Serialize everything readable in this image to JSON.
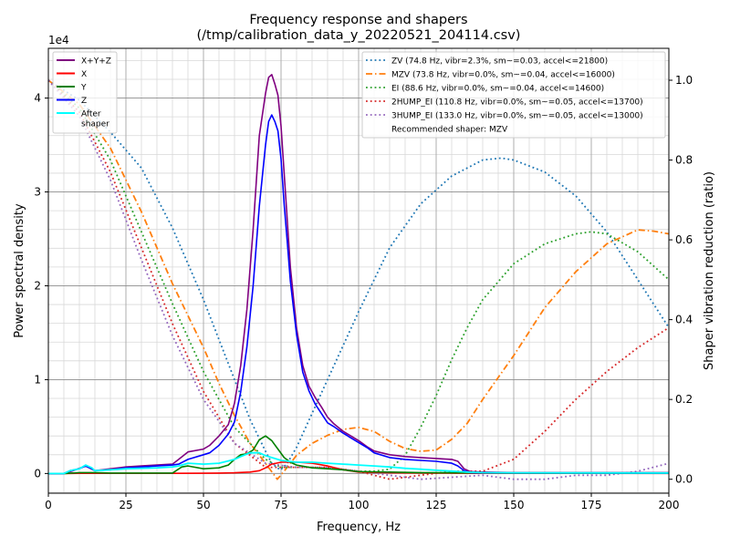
{
  "chart_data": {
    "type": "line",
    "title": "Frequency response and shapers",
    "subtitle": "(/tmp/calibration_data_y_20220521_204114.csv)",
    "xlabel": "Frequency, Hz",
    "ylabel": "Power spectral density",
    "y2label": "Shaper vibration reduction (ratio)",
    "y_offset_text": "1e4",
    "xlim": [
      0,
      200
    ],
    "ylim": [
      -2100,
      45300
    ],
    "y2lim": [
      -0.035,
      1.08
    ],
    "x_ticks": [
      0,
      25,
      50,
      75,
      100,
      125,
      150,
      175,
      200
    ],
    "y_ticks": [
      0,
      10000,
      20000,
      30000,
      40000
    ],
    "y_tick_labels": [
      "0",
      "1",
      "2",
      "3",
      "4"
    ],
    "y2_ticks": [
      0.0,
      0.2,
      0.4,
      0.6,
      0.8,
      1.0
    ],
    "y2_tick_labels": [
      "0.0",
      "0.2",
      "0.4",
      "0.6",
      "0.8",
      "1.0"
    ],
    "grid": true,
    "psd_legend_position": "top-left",
    "shaper_legend_position": "top-right",
    "psd_series": [
      {
        "name": "X+Y+Z",
        "color": "#800080",
        "width": 1.6,
        "x": [
          0,
          5,
          8,
          12,
          15,
          20,
          25,
          30,
          35,
          40,
          42,
          45,
          50,
          52,
          55,
          58,
          60,
          62,
          64,
          66,
          68,
          70,
          71,
          72,
          73,
          74,
          75,
          76,
          77,
          78,
          80,
          82,
          84,
          86,
          88,
          90,
          92,
          95,
          100,
          103,
          105,
          110,
          115,
          120,
          125,
          130,
          132,
          134,
          136,
          140,
          150,
          160,
          170,
          180,
          190,
          200
        ],
        "y": [
          0,
          0,
          300,
          800,
          300,
          500,
          700,
          800,
          900,
          1000,
          1500,
          2300,
          2600,
          3000,
          4000,
          5200,
          7500,
          11500,
          17500,
          26000,
          36000,
          40500,
          42200,
          42500,
          41500,
          40300,
          37000,
          32000,
          27000,
          22000,
          15500,
          11500,
          9300,
          8100,
          7100,
          6000,
          5300,
          4500,
          3500,
          2800,
          2400,
          2000,
          1800,
          1700,
          1600,
          1500,
          1300,
          500,
          200,
          150,
          100,
          100,
          100,
          100,
          100,
          100
        ]
      },
      {
        "name": "X",
        "color": "#ff0000",
        "width": 1.6,
        "x": [
          0,
          5,
          10,
          20,
          30,
          40,
          50,
          55,
          60,
          65,
          68,
          70,
          72,
          75,
          80,
          85,
          90,
          95,
          100,
          110,
          120,
          130,
          140,
          150,
          200
        ],
        "y": [
          0,
          0,
          20,
          20,
          20,
          20,
          30,
          50,
          80,
          150,
          300,
          600,
          1000,
          1200,
          1200,
          1100,
          800,
          400,
          150,
          80,
          60,
          40,
          30,
          20,
          10
        ]
      },
      {
        "name": "Y",
        "color": "#008000",
        "width": 1.6,
        "x": [
          0,
          5,
          10,
          15,
          20,
          30,
          40,
          43,
          45,
          50,
          55,
          58,
          60,
          62,
          64,
          66,
          68,
          70,
          72,
          74,
          76,
          78,
          80,
          85,
          90,
          95,
          100,
          110,
          120,
          130,
          140,
          150,
          200
        ],
        "y": [
          0,
          0,
          100,
          100,
          50,
          50,
          50,
          700,
          800,
          500,
          600,
          900,
          1500,
          2000,
          2100,
          2500,
          3600,
          4000,
          3500,
          2600,
          1700,
          1200,
          900,
          600,
          500,
          400,
          200,
          150,
          100,
          80,
          60,
          50,
          30
        ]
      },
      {
        "name": "Z",
        "color": "#0000ff",
        "width": 1.6,
        "x": [
          0,
          5,
          7,
          10,
          12,
          14,
          15,
          20,
          25,
          30,
          35,
          40,
          42,
          45,
          50,
          52,
          55,
          58,
          60,
          62,
          64,
          66,
          68,
          70,
          71,
          72,
          73,
          74,
          75,
          76,
          77,
          78,
          80,
          82,
          84,
          86,
          88,
          90,
          92,
          95,
          100,
          103,
          105,
          110,
          115,
          120,
          125,
          130,
          132,
          134,
          136,
          140,
          150,
          200
        ],
        "y": [
          0,
          0,
          300,
          500,
          800,
          500,
          300,
          400,
          600,
          700,
          800,
          900,
          1000,
          1500,
          2000,
          2200,
          3000,
          4200,
          5500,
          8700,
          13500,
          20000,
          28500,
          35000,
          37500,
          38200,
          37500,
          36500,
          33500,
          28700,
          24700,
          20500,
          14800,
          10800,
          8800,
          7400,
          6400,
          5400,
          5000,
          4300,
          3300,
          2700,
          2200,
          1700,
          1500,
          1400,
          1300,
          1100,
          800,
          300,
          100,
          80,
          60,
          50
        ]
      },
      {
        "name": "After\nshaper",
        "color": "#00ffff",
        "width": 1.8,
        "x": [
          0,
          5,
          7,
          10,
          12,
          14,
          15,
          20,
          25,
          30,
          35,
          40,
          42,
          45,
          50,
          55,
          60,
          62,
          65,
          68,
          70,
          72,
          75,
          80,
          85,
          90,
          95,
          100,
          105,
          110,
          115,
          120,
          125,
          130,
          135,
          140,
          150,
          200
        ],
        "y": [
          0,
          0,
          300,
          500,
          900,
          600,
          300,
          400,
          500,
          550,
          600,
          700,
          800,
          1100,
          1000,
          1100,
          1500,
          1800,
          2200,
          2200,
          1900,
          1700,
          1400,
          1200,
          1200,
          1100,
          1000,
          900,
          800,
          700,
          550,
          450,
          350,
          250,
          150,
          100,
          80,
          60
        ]
      }
    ],
    "shaper_series": [
      {
        "name": "ZV (74.8 Hz, vibr=2.3%, sm~=0.03, accel<=21800)",
        "color": "#1f77b4",
        "dash": "1.8,3",
        "x": [
          0,
          10,
          20,
          30,
          40,
          50,
          60,
          65,
          70,
          72,
          74.8,
          77,
          80,
          90,
          100,
          110,
          120,
          130,
          140,
          146,
          150,
          160,
          170,
          180,
          190,
          200
        ],
        "y": [
          1.0,
          0.95,
          0.87,
          0.78,
          0.63,
          0.45,
          0.25,
          0.15,
          0.07,
          0.04,
          0.023,
          0.04,
          0.08,
          0.25,
          0.42,
          0.58,
          0.69,
          0.76,
          0.8,
          0.805,
          0.8,
          0.77,
          0.71,
          0.62,
          0.5,
          0.38
        ]
      },
      {
        "name": "MZV (73.8 Hz, vibr=0.0%, sm~=0.04, accel<=16000)",
        "color": "#ff7f0e",
        "dash": "7,3,1.5,3",
        "x": [
          0,
          10,
          20,
          30,
          40,
          50,
          55,
          60,
          65,
          70,
          73.8,
          76,
          80,
          85,
          90,
          95,
          100,
          105,
          110,
          115,
          120,
          125,
          130,
          135,
          140,
          150,
          160,
          170,
          180,
          190,
          195,
          200
        ],
        "y": [
          1.0,
          0.94,
          0.83,
          0.67,
          0.49,
          0.33,
          0.24,
          0.16,
          0.09,
          0.04,
          0.0,
          0.02,
          0.06,
          0.09,
          0.11,
          0.125,
          0.13,
          0.12,
          0.095,
          0.077,
          0.07,
          0.073,
          0.1,
          0.14,
          0.2,
          0.31,
          0.43,
          0.52,
          0.59,
          0.625,
          0.622,
          0.615
        ]
      },
      {
        "name": "EI (88.6 Hz, vibr=0.0%, sm~=0.04, accel<=14600)",
        "color": "#2ca02c",
        "dash": "1.8,3",
        "x": [
          0,
          10,
          20,
          30,
          40,
          50,
          60,
          70,
          75,
          80,
          85,
          88.6,
          95,
          100,
          105,
          110,
          115,
          120,
          125,
          130,
          135,
          140,
          150,
          160,
          170,
          175,
          180,
          190,
          200
        ],
        "y": [
          1.0,
          0.93,
          0.8,
          0.62,
          0.44,
          0.27,
          0.13,
          0.05,
          0.03,
          0.03,
          0.03,
          0.028,
          0.024,
          0.02,
          0.02,
          0.025,
          0.06,
          0.13,
          0.21,
          0.3,
          0.38,
          0.45,
          0.54,
          0.59,
          0.615,
          0.62,
          0.615,
          0.57,
          0.5
        ]
      },
      {
        "name": "2HUMP_EI (110.8 Hz, vibr=0.0%, sm~=0.05, accel<=13700)",
        "color": "#d62728",
        "dash": "1.8,3",
        "x": [
          0,
          10,
          20,
          30,
          40,
          50,
          60,
          70,
          80,
          90,
          100,
          110,
          120,
          130,
          140,
          150,
          160,
          170,
          180,
          190,
          200
        ],
        "y": [
          1.0,
          0.92,
          0.77,
          0.58,
          0.39,
          0.22,
          0.09,
          0.03,
          0.03,
          0.03,
          0.02,
          0.0,
          0.01,
          0.02,
          0.02,
          0.05,
          0.12,
          0.2,
          0.27,
          0.33,
          0.38
        ]
      },
      {
        "name": "3HUMP_EI (133.0 Hz, vibr=0.0%, sm~=0.05, accel<=13000)",
        "color": "#9467bd",
        "dash": "1.8,3",
        "x": [
          0,
          10,
          20,
          30,
          40,
          50,
          60,
          70,
          80,
          90,
          100,
          110,
          120,
          130,
          140,
          150,
          160,
          170,
          180,
          190,
          200
        ],
        "y": [
          1.0,
          0.91,
          0.75,
          0.55,
          0.36,
          0.2,
          0.09,
          0.04,
          0.03,
          0.03,
          0.02,
          0.01,
          0.0,
          0.005,
          0.01,
          0.0,
          0.0,
          0.01,
          0.01,
          0.02,
          0.04
        ]
      }
    ],
    "recommended_text": "Recommended shaper: MZV"
  }
}
